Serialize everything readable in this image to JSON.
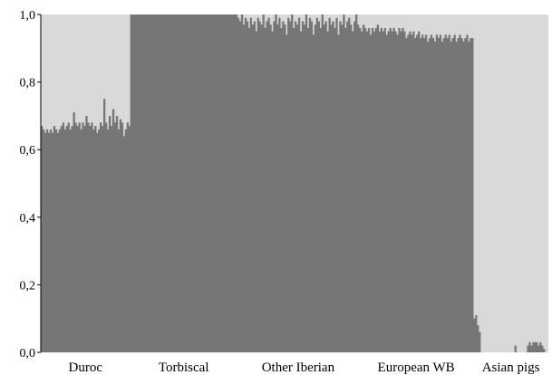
{
  "chart_data": {
    "type": "bar",
    "stacked": true,
    "ylim": [
      0,
      1.0
    ],
    "y_ticks": [
      "0,0",
      "0,2",
      "0,4",
      "0,6",
      "0,8",
      "1,0"
    ],
    "grid": false,
    "legend": "none",
    "colors": {
      "cluster_1": "#767676",
      "cluster_2": "#d9d9d9"
    },
    "groups": [
      {
        "label": "Duroc",
        "n": 50,
        "cluster_1": [
          0.67,
          0.66,
          0.65,
          0.66,
          0.65,
          0.66,
          0.65,
          0.67,
          0.66,
          0.65,
          0.66,
          0.67,
          0.68,
          0.66,
          0.67,
          0.68,
          0.66,
          0.67,
          0.71,
          0.68,
          0.67,
          0.68,
          0.66,
          0.68,
          0.67,
          0.7,
          0.68,
          0.67,
          0.68,
          0.66,
          0.67,
          0.65,
          0.66,
          0.68,
          0.67,
          0.75,
          0.68,
          0.66,
          0.7,
          0.67,
          0.72,
          0.68,
          0.7,
          0.66,
          0.69,
          0.68,
          0.64,
          0.66,
          0.68,
          0.67
        ]
      },
      {
        "label": "Torbiscal",
        "n": 60,
        "cluster_1": [
          1.0,
          1.0,
          1.0,
          1.0,
          1.0,
          1.0,
          1.0,
          1.0,
          1.0,
          1.0,
          1.0,
          1.0,
          1.0,
          1.0,
          1.0,
          1.0,
          1.0,
          1.0,
          1.0,
          1.0,
          1.0,
          1.0,
          1.0,
          1.0,
          1.0,
          1.0,
          1.0,
          1.0,
          1.0,
          1.0,
          1.0,
          1.0,
          1.0,
          1.0,
          1.0,
          1.0,
          1.0,
          1.0,
          1.0,
          1.0,
          1.0,
          1.0,
          1.0,
          1.0,
          1.0,
          1.0,
          1.0,
          1.0,
          1.0,
          1.0,
          1.0,
          1.0,
          1.0,
          1.0,
          1.0,
          1.0,
          1.0,
          1.0,
          1.0,
          1.0
        ]
      },
      {
        "label": "Other Iberian",
        "n": 68,
        "cluster_1": [
          0.99,
          0.98,
          1.0,
          0.97,
          0.99,
          0.98,
          0.96,
          0.99,
          0.97,
          0.98,
          0.95,
          0.99,
          0.98,
          0.97,
          1.0,
          0.96,
          0.98,
          0.99,
          0.97,
          0.95,
          0.98,
          1.0,
          0.97,
          0.99,
          0.96,
          0.98,
          0.97,
          0.94,
          0.99,
          0.98,
          1.0,
          0.96,
          0.98,
          0.97,
          0.99,
          0.95,
          0.98,
          0.97,
          1.0,
          0.96,
          0.99,
          0.98,
          0.94,
          0.97,
          0.99,
          0.98,
          0.96,
          1.0,
          0.97,
          0.98,
          0.95,
          0.99,
          0.97,
          0.98,
          0.96,
          0.99,
          0.94,
          0.98,
          0.97,
          1.0,
          0.96,
          0.98,
          0.99,
          0.97,
          0.95,
          0.98,
          1.0,
          0.97
        ]
      },
      {
        "label": "European WB",
        "n": 64,
        "cluster_1": [
          0.96,
          0.95,
          0.97,
          0.96,
          0.95,
          0.96,
          0.94,
          0.96,
          0.95,
          0.96,
          0.97,
          0.95,
          0.96,
          0.95,
          0.96,
          0.94,
          0.95,
          0.96,
          0.95,
          0.96,
          0.95,
          0.94,
          0.96,
          0.95,
          0.96,
          0.95,
          0.93,
          0.94,
          0.95,
          0.94,
          0.95,
          0.93,
          0.94,
          0.95,
          0.93,
          0.94,
          0.93,
          0.94,
          0.92,
          0.93,
          0.94,
          0.93,
          0.92,
          0.94,
          0.93,
          0.94,
          0.92,
          0.93,
          0.94,
          0.93,
          0.94,
          0.92,
          0.93,
          0.94,
          0.92,
          0.93,
          0.94,
          0.93,
          0.92,
          0.93,
          0.94,
          0.92,
          0.93,
          0.93
        ]
      },
      {
        "label": "Asian pigs",
        "n": 42,
        "cluster_1": [
          0.1,
          0.11,
          0.08,
          0.06,
          0,
          0,
          0,
          0,
          0,
          0,
          0,
          0,
          0,
          0,
          0,
          0,
          0,
          0,
          0,
          0,
          0,
          0,
          0,
          0.02,
          0,
          0,
          0,
          0,
          0,
          0,
          0.02,
          0.03,
          0.02,
          0.03,
          0.03,
          0.03,
          0.02,
          0.03,
          0.02,
          0.01,
          0,
          0
        ]
      }
    ]
  }
}
